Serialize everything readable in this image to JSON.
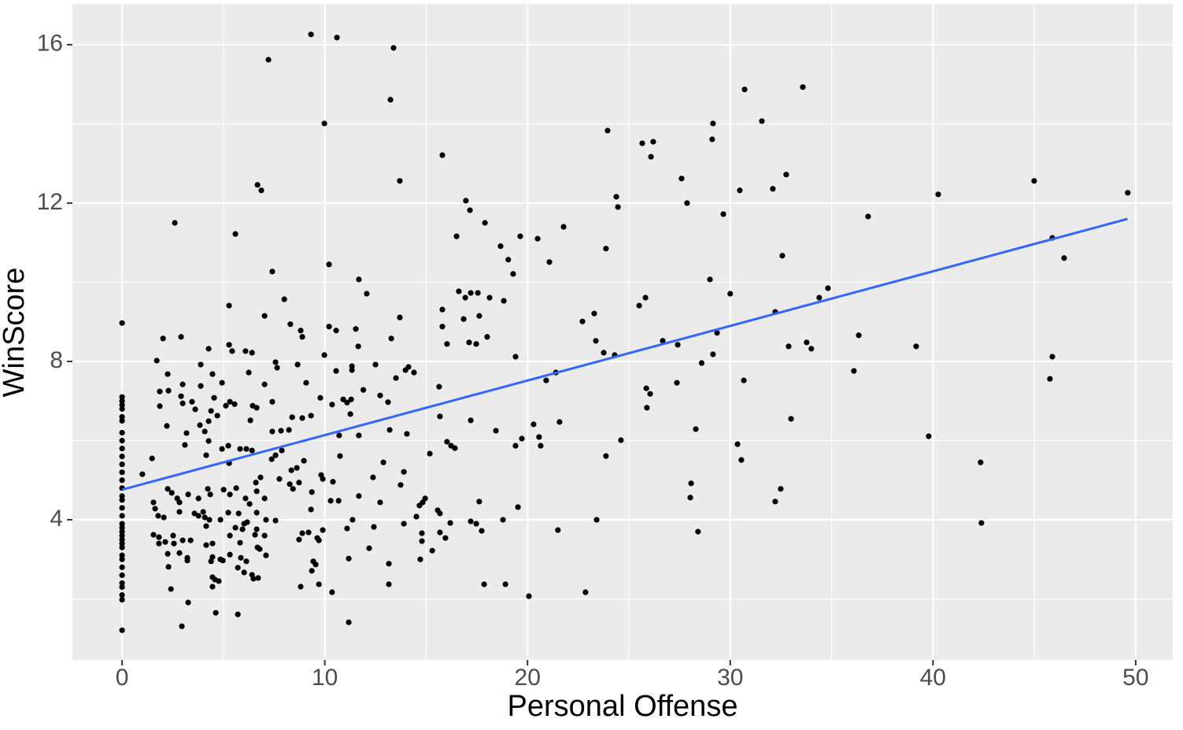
{
  "chart_data": {
    "type": "scatter",
    "x_label": "Personal Offense",
    "y_label": "WinScore",
    "color": "#000000",
    "grid": true,
    "xlim": [
      -2.45,
      51.83
    ],
    "ylim": [
      0.46,
      17.03
    ],
    "xticks": [
      0,
      10,
      20,
      30,
      40,
      50
    ],
    "yticks": [
      4,
      8,
      12,
      16
    ],
    "x": [
      0,
      0,
      0,
      0,
      0,
      0,
      0,
      0,
      0,
      0,
      0,
      0,
      0,
      0,
      0,
      0,
      0,
      0,
      0,
      0,
      0,
      0,
      0,
      0,
      0,
      0,
      0,
      0,
      0,
      0,
      0,
      0,
      0,
      0,
      0,
      9.32,
      10.6,
      13.39,
      7.22,
      13.24,
      9.98,
      30.71,
      33.58,
      31.56,
      29.15,
      23.95,
      29.11,
      25.66,
      26.2,
      26.09,
      15.8,
      13.7,
      6.68,
      6.87,
      27.6,
      32.76,
      44.99,
      49.61,
      40.26,
      30.47,
      32.1,
      24.38,
      24.46,
      27.87,
      16.96,
      17.16,
      2.6,
      5.59,
      17.9,
      21.78,
      29.66,
      36.8,
      16.5,
      19.64,
      20.5,
      45.89,
      46.47,
      23.87,
      18.67,
      19.05,
      32.57,
      10.21,
      21.08,
      19.29,
      7.41,
      11.68,
      29.0,
      34.82,
      12.07,
      30.0,
      34.39,
      25.82,
      25.51,
      8.0,
      5.28,
      16.61,
      17.2,
      16.93,
      17.55,
      18.13,
      18.83,
      15.8,
      32.22,
      23.29,
      13.7,
      7.03,
      16.85,
      17.62,
      22.71,
      15.8,
      8.3,
      10.21,
      10.56,
      11.53,
      8.81,
      2.91,
      8.89,
      29.35,
      2.02,
      13.28,
      17.12,
      17.47,
      18.01,
      23.37,
      26.67,
      27.41,
      36.34,
      33.77,
      34.0,
      32.88,
      39.17,
      16.03,
      11.65,
      4.27,
      5.28,
      5.43,
      6.09,
      6.41,
      23.76,
      24.3,
      29.15,
      9.98,
      45.89,
      19.41,
      1.71,
      3.88,
      7.57,
      7.65,
      8.66,
      11.34,
      12.5,
      11.34,
      28.59,
      2.25,
      4.46,
      6.25,
      10.56,
      13.98,
      14.13,
      14.4,
      21.4,
      36.1,
      13.51,
      20.92,
      30.67,
      45.77,
      27.37,
      3.88,
      4.93,
      2.99,
      9.08,
      7.03,
      15.64,
      1.86,
      2.29,
      2.91,
      11.9,
      25.86,
      26.05,
      12.73,
      4.54,
      3.45,
      9.78,
      10.91,
      11.1,
      11.3,
      5.32,
      5.55,
      5.12,
      7.41,
      1.86,
      2.99,
      6.44,
      6.64,
      10.36,
      13.12,
      3.61,
      4.39,
      4.7,
      25.89,
      11.26,
      9.32,
      8.39,
      8.89,
      33.0,
      15.68,
      4.27,
      17.2,
      21.58,
      3.84,
      2.21,
      6.33,
      20.3,
      20.57,
      20.65,
      28.3,
      18.44,
      13.2,
      8.23,
      7.84,
      7.41,
      14.05,
      3.18,
      4.08,
      10.71,
      11.68,
      39.79,
      19.72,
      24.61,
      3.1,
      4.27,
      5.24,
      16.03,
      16.23,
      16.42,
      19.41,
      30.36,
      5.82,
      4.93,
      6.13,
      6.41,
      7.57,
      7.88,
      4.15,
      15.18,
      23.87,
      10.75,
      30.55,
      42.35,
      1.48,
      5.28,
      7.38,
      12.89,
      8.97,
      1.0,
      8.35,
      8.62,
      13.9,
      9.82,
      9.9,
      12.38,
      10.4,
      7.76,
      8.27,
      8.73,
      8.43,
      28.07,
      6.83,
      6.6,
      6.64,
      5.63,
      5.01,
      5.32,
      9.36,
      13.74,
      4.23,
      4.35,
      2.25,
      2.45,
      2.72,
      28.03,
      32.49,
      32.22,
      3.26,
      11.68,
      3.77,
      7.03,
      14.95,
      14.83,
      14.67,
      1.55,
      1.63,
      2.83,
      10.29,
      10.68,
      17.62,
      12.73,
      6.09,
      6.29,
      19.53,
      15.57,
      15.68,
      14.52,
      9.32,
      4.0,
      3.57,
      3.77,
      4.08,
      2.83,
      5.24,
      5.75,
      4.15,
      4.85,
      4.31,
      6.64,
      7.1,
      1.78,
      2.06,
      7.57,
      6.17,
      6.02,
      5.94,
      6.64,
      11.37,
      13.9,
      16.19,
      17.2,
      17.47,
      17.74,
      18.79,
      23.41,
      42.39,
      12.42,
      11.1,
      5.59,
      5.32,
      9.9,
      21.5,
      28.41,
      8.89,
      9.2,
      8.73,
      14.79,
      14.79,
      1.55,
      1.82,
      2.52,
      2.56,
      6.56,
      7.03,
      9.63,
      9.71,
      15.68,
      15.95,
      2.13,
      1.82,
      2.99,
      3.38,
      4.46,
      5.82,
      6.68,
      6.79,
      4.15,
      12.19,
      15.3,
      2.25,
      2.83,
      3.22,
      3.22,
      5.32,
      5.86,
      7.1,
      4.39,
      4.46,
      4.97,
      4.85,
      11.18,
      14.71,
      9.43,
      9.55,
      6.13,
      13.16,
      2.29,
      5.71,
      6.02,
      9.36,
      6.41,
      6.48,
      6.71,
      4.46,
      4.58,
      4.77,
      4.46,
      9.71,
      13.16,
      8.81,
      17.86,
      18.91,
      2.41,
      10.36,
      22.86,
      20.07,
      3.26,
      4.62,
      5.71,
      11.18,
      2.95
    ],
    "values": [
      8.97,
      7.1,
      7.0,
      6.9,
      6.8,
      6.6,
      6.5,
      6.2,
      6.0,
      5.8,
      5.6,
      5.4,
      5.2,
      5.0,
      4.8,
      4.6,
      4.5,
      4.3,
      4.1,
      3.9,
      3.8,
      3.7,
      3.6,
      3.5,
      3.4,
      3.3,
      3.1,
      3.0,
      2.8,
      2.6,
      2.4,
      2.3,
      2.1,
      1.98,
      1.21,
      16.26,
      16.18,
      15.92,
      15.62,
      14.61,
      14.01,
      14.87,
      14.93,
      14.07,
      14.01,
      13.83,
      13.61,
      13.51,
      13.55,
      13.17,
      13.21,
      12.56,
      12.46,
      12.32,
      12.62,
      12.72,
      12.56,
      12.26,
      12.22,
      12.32,
      12.36,
      12.16,
      11.9,
      12.0,
      12.06,
      11.82,
      11.5,
      11.22,
      11.5,
      11.4,
      11.72,
      11.66,
      11.16,
      11.16,
      11.1,
      11.12,
      10.61,
      10.85,
      10.91,
      10.57,
      10.67,
      10.45,
      10.51,
      10.21,
      10.27,
      10.07,
      10.07,
      9.85,
      9.71,
      9.71,
      9.61,
      9.61,
      9.41,
      9.57,
      9.41,
      9.77,
      9.73,
      9.61,
      9.73,
      9.61,
      9.53,
      9.31,
      9.25,
      9.21,
      9.11,
      9.15,
      9.07,
      9.15,
      9.01,
      8.88,
      8.94,
      8.88,
      8.78,
      8.82,
      8.78,
      8.62,
      8.62,
      8.72,
      8.58,
      8.58,
      8.48,
      8.44,
      8.62,
      8.52,
      8.52,
      8.42,
      8.66,
      8.48,
      8.32,
      8.38,
      8.38,
      8.44,
      8.38,
      8.32,
      8.42,
      8.26,
      8.26,
      8.22,
      8.22,
      8.16,
      8.18,
      8.16,
      8.12,
      8.12,
      8.02,
      7.92,
      7.98,
      7.84,
      7.92,
      7.88,
      7.92,
      7.78,
      7.96,
      7.68,
      7.68,
      7.72,
      7.76,
      7.78,
      7.86,
      7.72,
      7.72,
      7.76,
      7.58,
      7.52,
      7.52,
      7.56,
      7.46,
      7.38,
      7.46,
      7.42,
      7.46,
      7.42,
      7.36,
      7.24,
      7.26,
      7.12,
      7.28,
      7.32,
      7.18,
      7.14,
      7.08,
      6.98,
      7.08,
      7.04,
      6.96,
      7.04,
      6.98,
      6.92,
      6.88,
      6.98,
      6.87,
      6.94,
      6.88,
      6.83,
      6.91,
      6.97,
      6.79,
      6.75,
      6.63,
      6.83,
      6.67,
      6.63,
      6.59,
      6.57,
      6.55,
      6.61,
      6.49,
      6.51,
      6.47,
      6.39,
      6.37,
      6.51,
      6.41,
      6.09,
      5.87,
      6.29,
      6.25,
      6.27,
      6.27,
      6.25,
      6.23,
      6.17,
      6.19,
      6.23,
      6.13,
      6.13,
      6.11,
      6.05,
      6.01,
      5.89,
      5.99,
      5.87,
      5.97,
      5.87,
      5.81,
      5.87,
      5.91,
      5.79,
      5.79,
      5.79,
      5.75,
      5.63,
      5.75,
      5.63,
      5.67,
      5.61,
      5.61,
      5.51,
      5.45,
      5.55,
      5.43,
      5.53,
      5.45,
      5.49,
      5.15,
      5.25,
      5.31,
      5.21,
      5.13,
      5.03,
      5.07,
      4.96,
      5.03,
      4.9,
      4.94,
      4.78,
      4.92,
      5.07,
      4.94,
      4.72,
      4.8,
      4.76,
      4.64,
      4.7,
      4.88,
      4.78,
      4.64,
      4.78,
      4.68,
      4.54,
      4.56,
      4.78,
      4.46,
      4.64,
      4.6,
      4.54,
      4.54,
      4.54,
      4.44,
      4.36,
      4.44,
      4.28,
      4.44,
      4.48,
      4.48,
      4.46,
      4.44,
      4.54,
      4.4,
      4.32,
      4.24,
      4.16,
      4.08,
      4.26,
      4.2,
      4.16,
      4.1,
      4.06,
      4.2,
      4.18,
      4.16,
      3.84,
      4.0,
      4.0,
      4.18,
      4.0,
      4.1,
      4.06,
      3.98,
      3.94,
      3.9,
      3.76,
      3.76,
      4.0,
      3.9,
      3.92,
      3.96,
      3.9,
      3.72,
      4.0,
      4.0,
      3.92,
      3.82,
      3.78,
      3.8,
      3.6,
      3.74,
      3.74,
      3.7,
      3.66,
      3.68,
      3.5,
      3.66,
      3.46,
      3.62,
      3.56,
      3.6,
      3.4,
      3.62,
      3.6,
      3.54,
      3.48,
      3.68,
      3.54,
      3.44,
      3.4,
      3.48,
      3.48,
      3.4,
      3.42,
      3.3,
      3.26,
      3.36,
      3.28,
      3.22,
      3.14,
      3.16,
      3.04,
      2.97,
      3.12,
      3.04,
      3.1,
      2.95,
      3.06,
      2.97,
      3.0,
      3.02,
      3.0,
      2.95,
      2.87,
      2.95,
      2.89,
      2.81,
      2.79,
      2.67,
      2.71,
      2.61,
      2.51,
      2.53,
      2.55,
      2.49,
      2.45,
      2.31,
      2.37,
      2.37,
      2.31,
      2.37,
      2.37,
      2.25,
      2.17,
      2.17,
      2.07,
      1.91,
      1.65,
      1.61,
      1.41,
      1.31
    ],
    "trend": {
      "color": "#3366ff",
      "x": [
        0,
        49.6
      ],
      "values": [
        4.76,
        11.6
      ]
    }
  }
}
